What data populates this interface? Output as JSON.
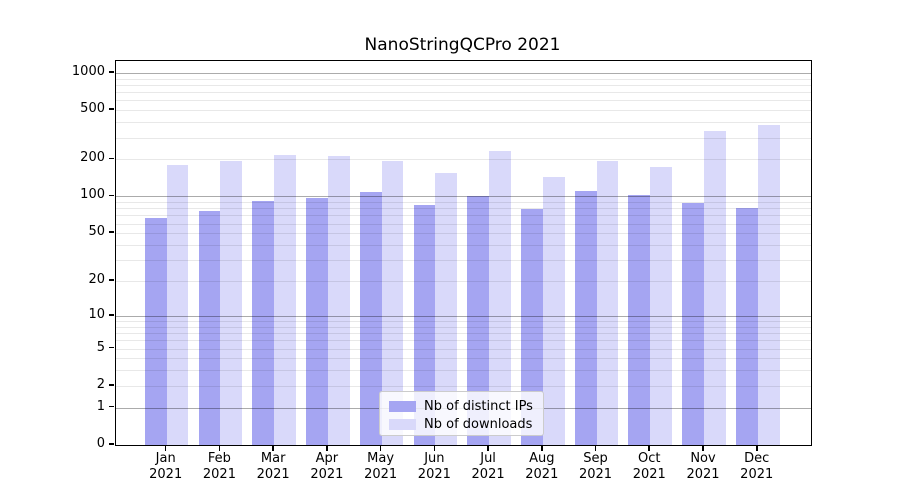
{
  "figure": {
    "title": "NanoStringQCPro 2021"
  },
  "legend": {
    "items": [
      {
        "label": "Nb of distinct IPs",
        "color": "#a5a5f2"
      },
      {
        "label": "Nb of downloads",
        "color": "#d9d9fa"
      }
    ]
  },
  "chart_data": {
    "type": "bar",
    "title": "NanoStringQCPro 2021",
    "year": "2021",
    "months": [
      "Jan",
      "Feb",
      "Mar",
      "Apr",
      "May",
      "Jun",
      "Jul",
      "Aug",
      "Sep",
      "Oct",
      "Nov",
      "Dec"
    ],
    "categories": [
      "Jan 2021",
      "Feb 2021",
      "Mar 2021",
      "Apr 2021",
      "May 2021",
      "Jun 2021",
      "Jul 2021",
      "Aug 2021",
      "Sep 2021",
      "Oct 2021",
      "Nov 2021",
      "Dec 2021"
    ],
    "series": [
      {
        "name": "Nb of distinct IPs",
        "color": "#a5a5f2",
        "values": [
          67,
          76,
          92,
          97,
          108,
          86,
          100,
          79,
          111,
          102,
          89,
          80
        ]
      },
      {
        "name": "Nb of downloads",
        "color": "#d9d9fa",
        "values": [
          179,
          195,
          218,
          215,
          195,
          156,
          234,
          145,
          196,
          175,
          342,
          382
        ]
      }
    ],
    "xlabel": "",
    "ylabel": "",
    "yscale": "log10(value+1)",
    "yticks": [
      0,
      1,
      2,
      5,
      10,
      20,
      50,
      100,
      200,
      500,
      1000
    ],
    "ylim": [
      0,
      1240
    ],
    "grid": {
      "orientation": "horizontal",
      "minor_color": "#e8e8e8",
      "major_color": "#a6a6a6",
      "major_at": [
        1,
        10,
        100,
        1000
      ],
      "minor_at": "k x 10^n for k=2..9, n=0..2",
      "drawn_over_bars": true
    },
    "legend_position": "inside-bottom-center"
  }
}
